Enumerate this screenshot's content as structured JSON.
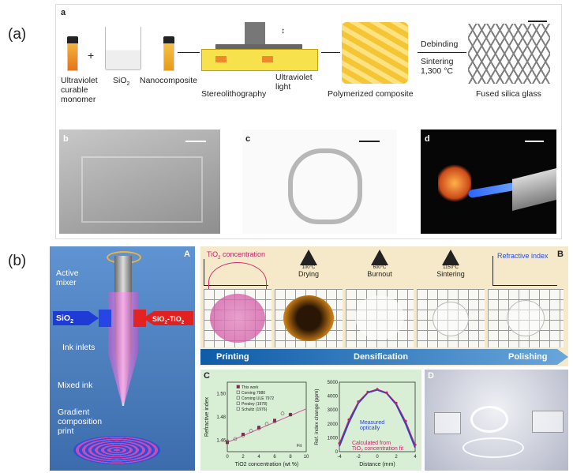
{
  "panel_a": {
    "label": "(a)",
    "sub_a": "a",
    "captions": {
      "monomer": "Ultraviolet\ncurable\nmonomer",
      "plus": "+",
      "sio2": "SiO",
      "sio2_sub": "2",
      "nanocomposite": "Nanocomposite",
      "stereo": "Stereolithography",
      "uv_light": "Ultraviolet\nlight",
      "polymerized": "Polymerized composite",
      "debinding": "Debinding",
      "sintering": "Sintering\n1,300 °C",
      "fused": "Fused silica glass"
    },
    "photos": [
      {
        "label": "b"
      },
      {
        "label": "c"
      },
      {
        "label": "d"
      }
    ]
  },
  "panel_b": {
    "label": "(b)",
    "diagram": {
      "label": "A",
      "active_mixer": "Active\nmixer",
      "sio2_arrow": "SiO",
      "sio2_sub": "2",
      "mix_arrow": "SiO",
      "mix_sub": "2",
      "mix_tail": "-TiO",
      "mix_tail_sub": "2",
      "ink_inlets": "Ink inlets",
      "mixed_ink": "Mixed ink",
      "gradient": "Gradient\ncomposition\nprint"
    },
    "process": {
      "label": "B",
      "tio2_title_a": "TiO",
      "tio2_title_sub": "2",
      "tio2_title_b": " concentration",
      "refractive_title": "Refractive index",
      "steps": [
        {
          "name": "Drying",
          "temp": "100°C"
        },
        {
          "name": "Burnout",
          "temp": "600°C"
        },
        {
          "name": "Sintering",
          "temp": "1150°C"
        }
      ],
      "band": [
        "Printing",
        "Densification",
        "Polishing"
      ]
    },
    "chart_c": {
      "label": "C",
      "legend": [
        "This work",
        "Corning 7980",
        "Corning ULE 7972",
        "Presley (1978)",
        "Schultz (1976)"
      ],
      "fit_label": "Fit",
      "yticks": [
        "1.50",
        "1.48",
        "1.46"
      ],
      "xticks": [
        "0",
        "2",
        "4",
        "6",
        "8",
        "10"
      ]
    },
    "chart_c2": {
      "yticks": [
        "5000",
        "4000",
        "3000",
        "2000",
        "1000",
        "0"
      ],
      "xticks": [
        "-4",
        "-2",
        "0",
        "2",
        "4"
      ],
      "measured": "Measured\noptically",
      "calculated_a": "Calculated from",
      "calculated_b": "TiO",
      "calculated_sub": "2",
      "calculated_c": " concentration fit"
    },
    "photo_d": {
      "label": "D"
    }
  },
  "chart_data": [
    {
      "type": "scatter",
      "xlabel": "TiO2 concentration (wt %)",
      "ylabel": "Refractive index",
      "xlim": [
        0,
        10
      ],
      "ylim": [
        1.45,
        1.51
      ],
      "series": [
        {
          "name": "This work",
          "x": [
            0,
            2,
            4,
            6,
            8
          ],
          "y": [
            1.458,
            1.465,
            1.471,
            1.477,
            1.482
          ]
        },
        {
          "name": "Corning 7980",
          "x": [
            0
          ],
          "y": [
            1.459
          ]
        },
        {
          "name": "Corning ULE 7972",
          "x": [
            7
          ],
          "y": [
            1.483
          ]
        },
        {
          "name": "Presley (1978)",
          "x": [
            1,
            3,
            5
          ],
          "y": [
            1.461,
            1.468,
            1.474
          ]
        },
        {
          "name": "Schultz (1976)",
          "x": [
            2,
            4,
            6,
            8
          ],
          "y": [
            1.464,
            1.47,
            1.476,
            1.482
          ]
        },
        {
          "name": "Fit",
          "x": [
            0,
            10
          ],
          "y": [
            1.458,
            1.487
          ]
        }
      ]
    },
    {
      "type": "line",
      "xlabel": "Distance (mm)",
      "ylabel": "Ref. index change (ppm)",
      "xlim": [
        -4,
        4
      ],
      "ylim": [
        0,
        5000
      ],
      "series": [
        {
          "name": "Measured optically",
          "x": [
            -4,
            -3,
            -2,
            -1,
            0,
            1,
            2,
            3,
            4
          ],
          "y": [
            400,
            2100,
            3500,
            4250,
            4450,
            4200,
            3400,
            2000,
            300
          ]
        },
        {
          "name": "Calculated from TiO2 concentration fit",
          "x": [
            -4,
            -3,
            -2,
            -1,
            0,
            1,
            2,
            3,
            4
          ],
          "y": [
            600,
            2300,
            3600,
            4300,
            4500,
            4250,
            3500,
            2200,
            500
          ]
        }
      ]
    }
  ]
}
